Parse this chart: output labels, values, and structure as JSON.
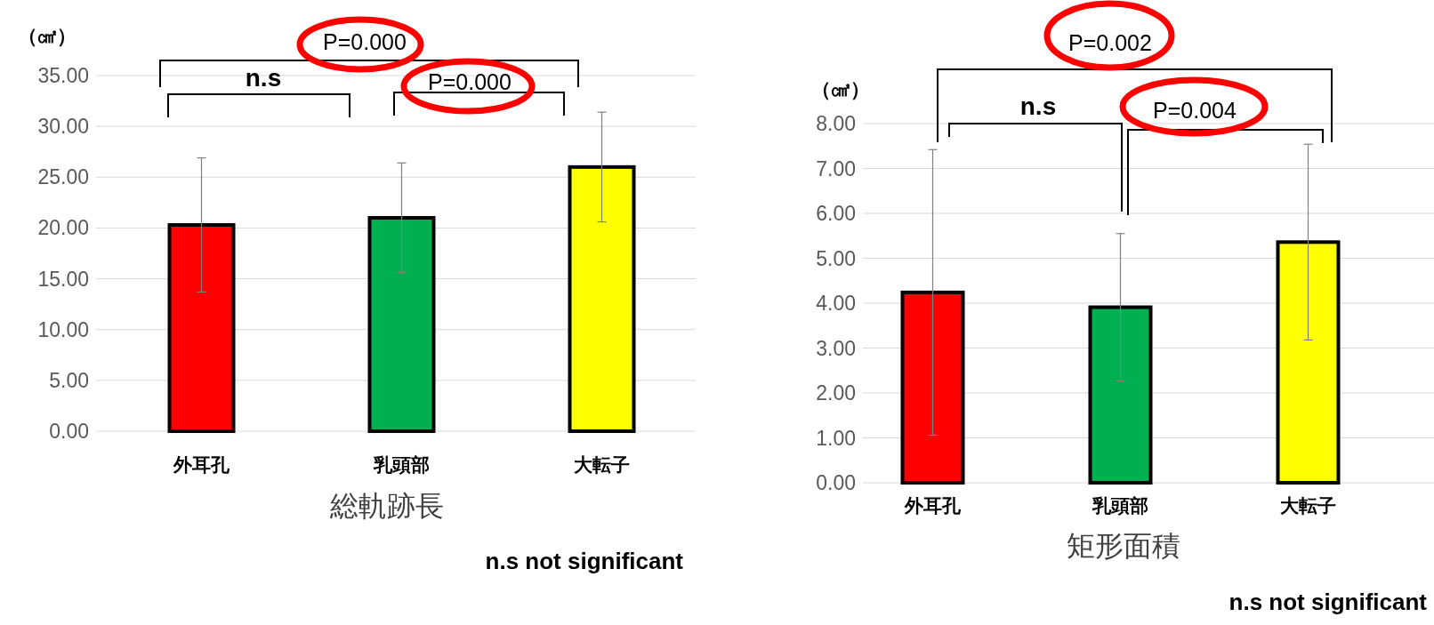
{
  "chart_data": [
    {
      "type": "bar",
      "ylabel": "（㎠）",
      "xlabel": "総軌跡長",
      "categories": [
        "外耳孔",
        "乳頭部",
        "大転子"
      ],
      "values": [
        20.3,
        21.0,
        26.0
      ],
      "errors": [
        6.6,
        5.4,
        5.4
      ],
      "colors": [
        "#ff0000",
        "#00b050",
        "#ffff00"
      ],
      "ylim": [
        0,
        35
      ],
      "yticks": [
        {
          "value": 0,
          "label": "0.00"
        },
        {
          "value": 5,
          "label": "5.00"
        },
        {
          "value": 10,
          "label": "10.00"
        },
        {
          "value": 15,
          "label": "15.00"
        },
        {
          "value": 20,
          "label": "20.00"
        },
        {
          "value": 25,
          "label": "25.00"
        },
        {
          "value": 30,
          "label": "30.00"
        },
        {
          "value": 35,
          "label": "35.00"
        }
      ],
      "grid": "y",
      "annotations": [
        "P=0.000",
        "n.s",
        "P=0.000",
        "n.s not significant"
      ]
    },
    {
      "type": "bar",
      "ylabel": "（㎠）",
      "xlabel": "矩形面積",
      "categories": [
        "外耳孔",
        "乳頭部",
        "大転子"
      ],
      "values": [
        4.24,
        3.91,
        5.36
      ],
      "errors": [
        3.18,
        1.64,
        2.18
      ],
      "colors": [
        "#ff0000",
        "#00b050",
        "#ffff00"
      ],
      "ylim": [
        0,
        8
      ],
      "yticks": [
        {
          "value": 0,
          "label": "0.00"
        },
        {
          "value": 1,
          "label": "1.00"
        },
        {
          "value": 2,
          "label": "2.00"
        },
        {
          "value": 3,
          "label": "3.00"
        },
        {
          "value": 4,
          "label": "4.00"
        },
        {
          "value": 5,
          "label": "5.00"
        },
        {
          "value": 6,
          "label": "6.00"
        },
        {
          "value": 7,
          "label": "7.00"
        },
        {
          "value": 8,
          "label": "8.00"
        }
      ],
      "grid": "y",
      "annotations": [
        "P=0.002",
        "n.s",
        "P=0.004",
        "n.s not significant"
      ]
    }
  ]
}
